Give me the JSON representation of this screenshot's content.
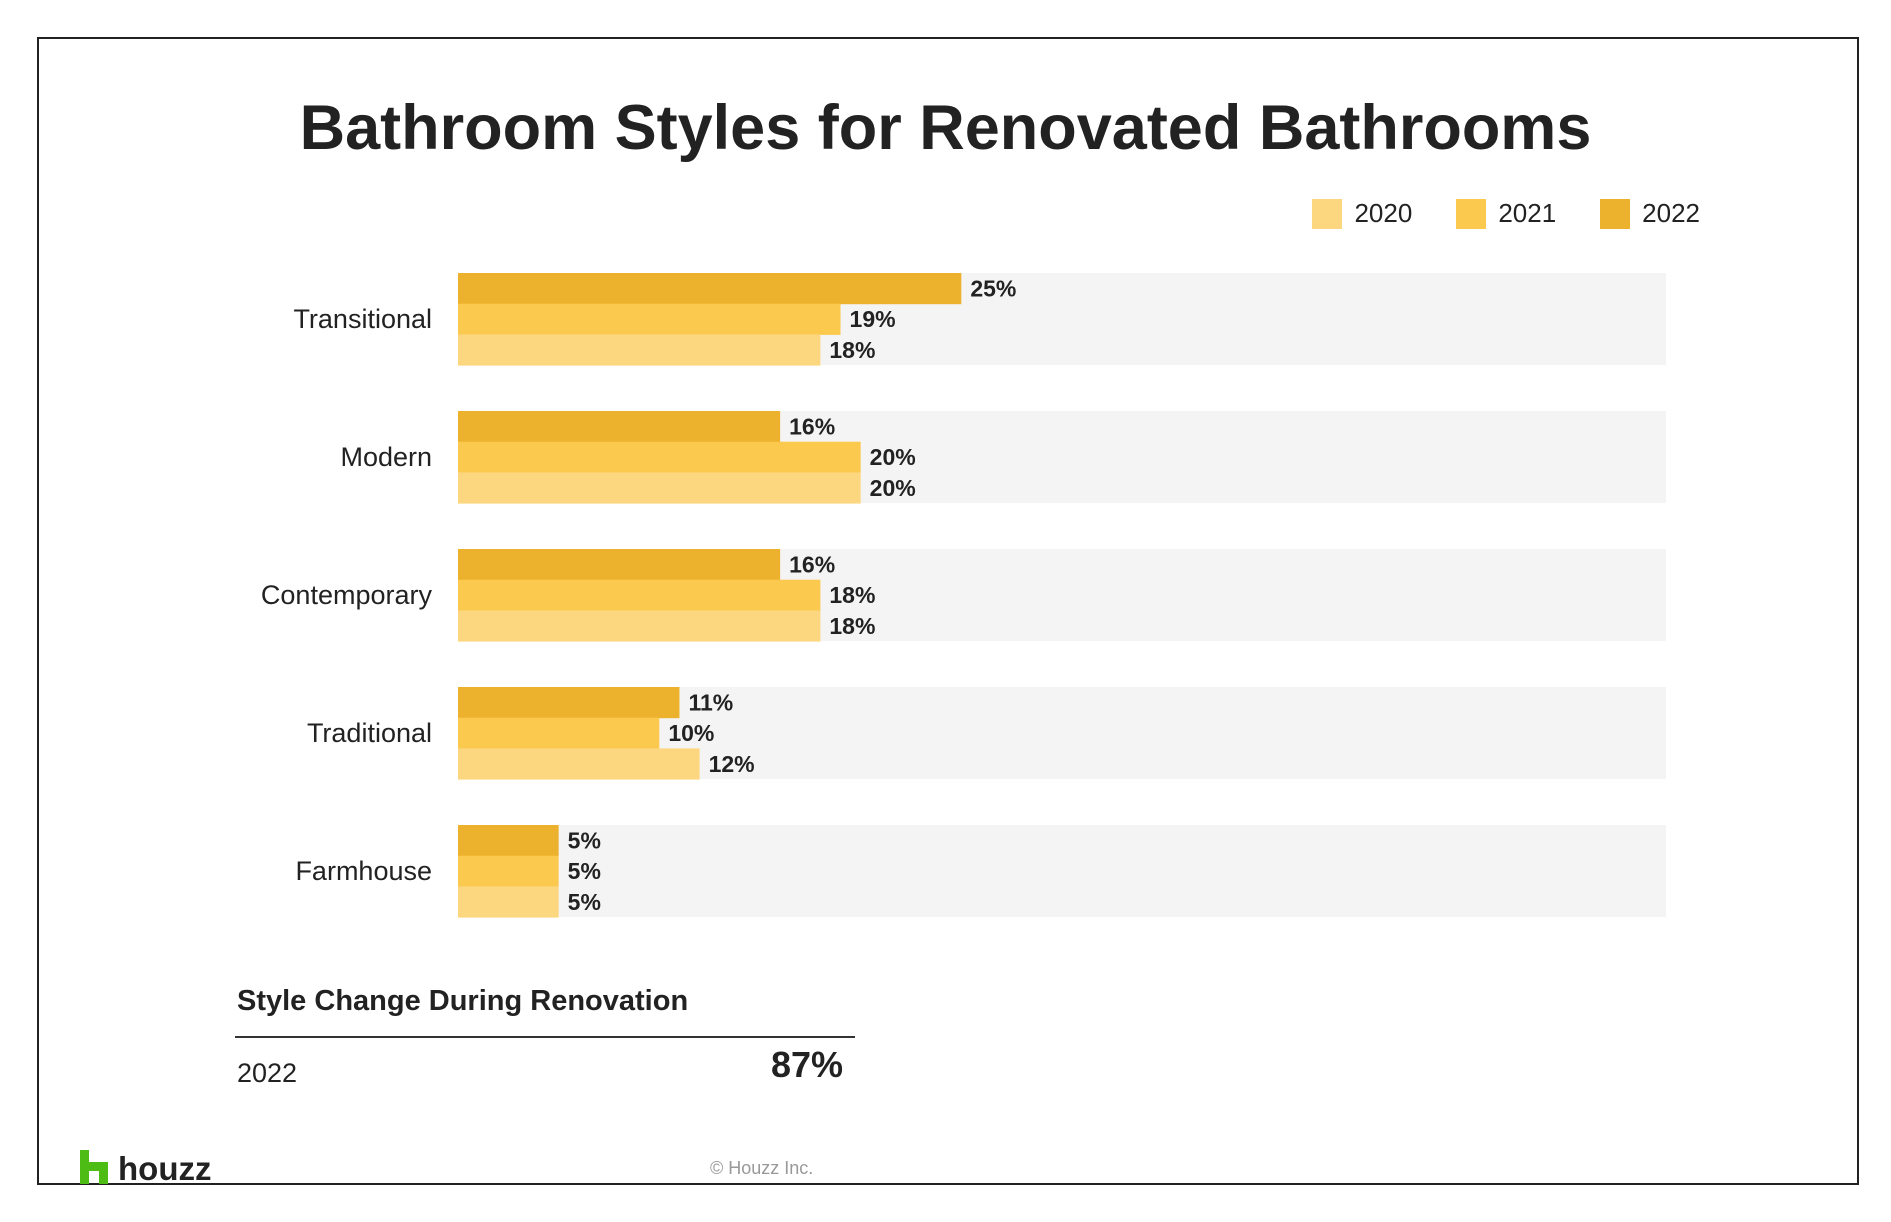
{
  "header": {
    "title": "Bathroom Styles for Renovated Bathrooms"
  },
  "colors": {
    "2020": "#FDD77F",
    "2021": "#FCC94F",
    "2022": "#ECB22E",
    "track": "#F4F4F4"
  },
  "chart_data": {
    "type": "bar",
    "orientation": "horizontal",
    "title": "Bathroom Styles for Renovated Bathrooms",
    "categories": [
      "Transitional",
      "Modern",
      "Contemporary",
      "Traditional",
      "Farmhouse"
    ],
    "series": [
      {
        "name": "2022",
        "values": [
          25,
          16,
          16,
          11,
          5
        ]
      },
      {
        "name": "2021",
        "values": [
          19,
          20,
          18,
          10,
          5
        ]
      },
      {
        "name": "2020",
        "values": [
          18,
          20,
          18,
          12,
          5
        ]
      }
    ],
    "value_labels": [
      [
        "25%",
        "19%",
        "18%"
      ],
      [
        "16%",
        "20%",
        "20%"
      ],
      [
        "16%",
        "18%",
        "18%"
      ],
      [
        "11%",
        "10%",
        "12%"
      ],
      [
        "5%",
        "5%",
        "5%"
      ]
    ],
    "legend": [
      "2020",
      "2021",
      "2022"
    ],
    "legend_position": "top-right",
    "xlim": [
      0,
      60
    ],
    "unit": "%",
    "grid": false
  },
  "summary": {
    "title": "Style Change During Renovation",
    "year": "2022",
    "value": "87%"
  },
  "footer": {
    "logo_text": "houzz",
    "copyright": "© Houzz Inc."
  }
}
